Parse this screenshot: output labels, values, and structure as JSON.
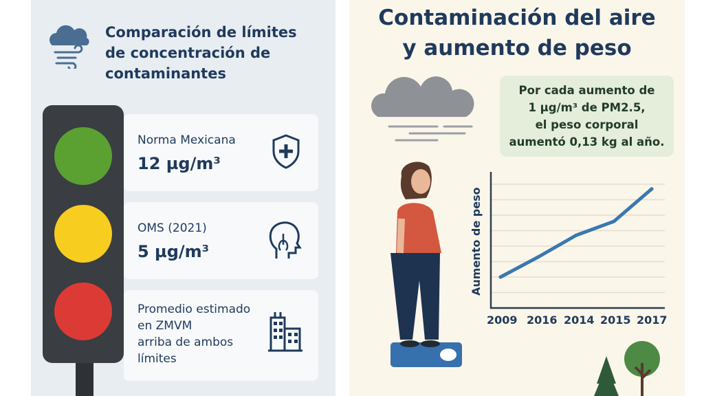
{
  "left": {
    "title_lines": [
      "Comparación de límites",
      "de concentración de",
      "contaminantes"
    ],
    "cards": [
      {
        "label": "Norma Mexicana",
        "value": "12 µg/m³",
        "icon": "shield-plus-icon"
      },
      {
        "label": "OMS (2021)",
        "value": "5 µg/m³",
        "icon": "head-lungs-icon"
      },
      {
        "label_lines": [
          "Promedio estimado",
          "en ZMVM",
          "arriba de ambos",
          "límites"
        ],
        "icon": "buildings-icon"
      }
    ],
    "colors": {
      "green": "#5aa132",
      "yellow": "#f7cd1f",
      "red": "#dc3b35"
    }
  },
  "right": {
    "title_lines": [
      "Contaminación del aire",
      "y aumento de peso"
    ],
    "note_lines": [
      "Por cada aumento de",
      "1 µg/m³ de PM2.5,",
      "el peso corporal",
      "aumentó 0,13 kg al año."
    ]
  },
  "chart_data": {
    "type": "line",
    "ylabel": "Aumento de peso",
    "xlabel": "",
    "categories": [
      "2009",
      "2016",
      "2014",
      "2015",
      "2017"
    ],
    "series": [
      {
        "name": "Aumento de peso",
        "values": [
          2.0,
          3.3,
          4.7,
          5.6,
          7.7
        ]
      }
    ],
    "ylim": [
      0,
      8
    ],
    "grid": true,
    "color": "#3a78b0"
  }
}
